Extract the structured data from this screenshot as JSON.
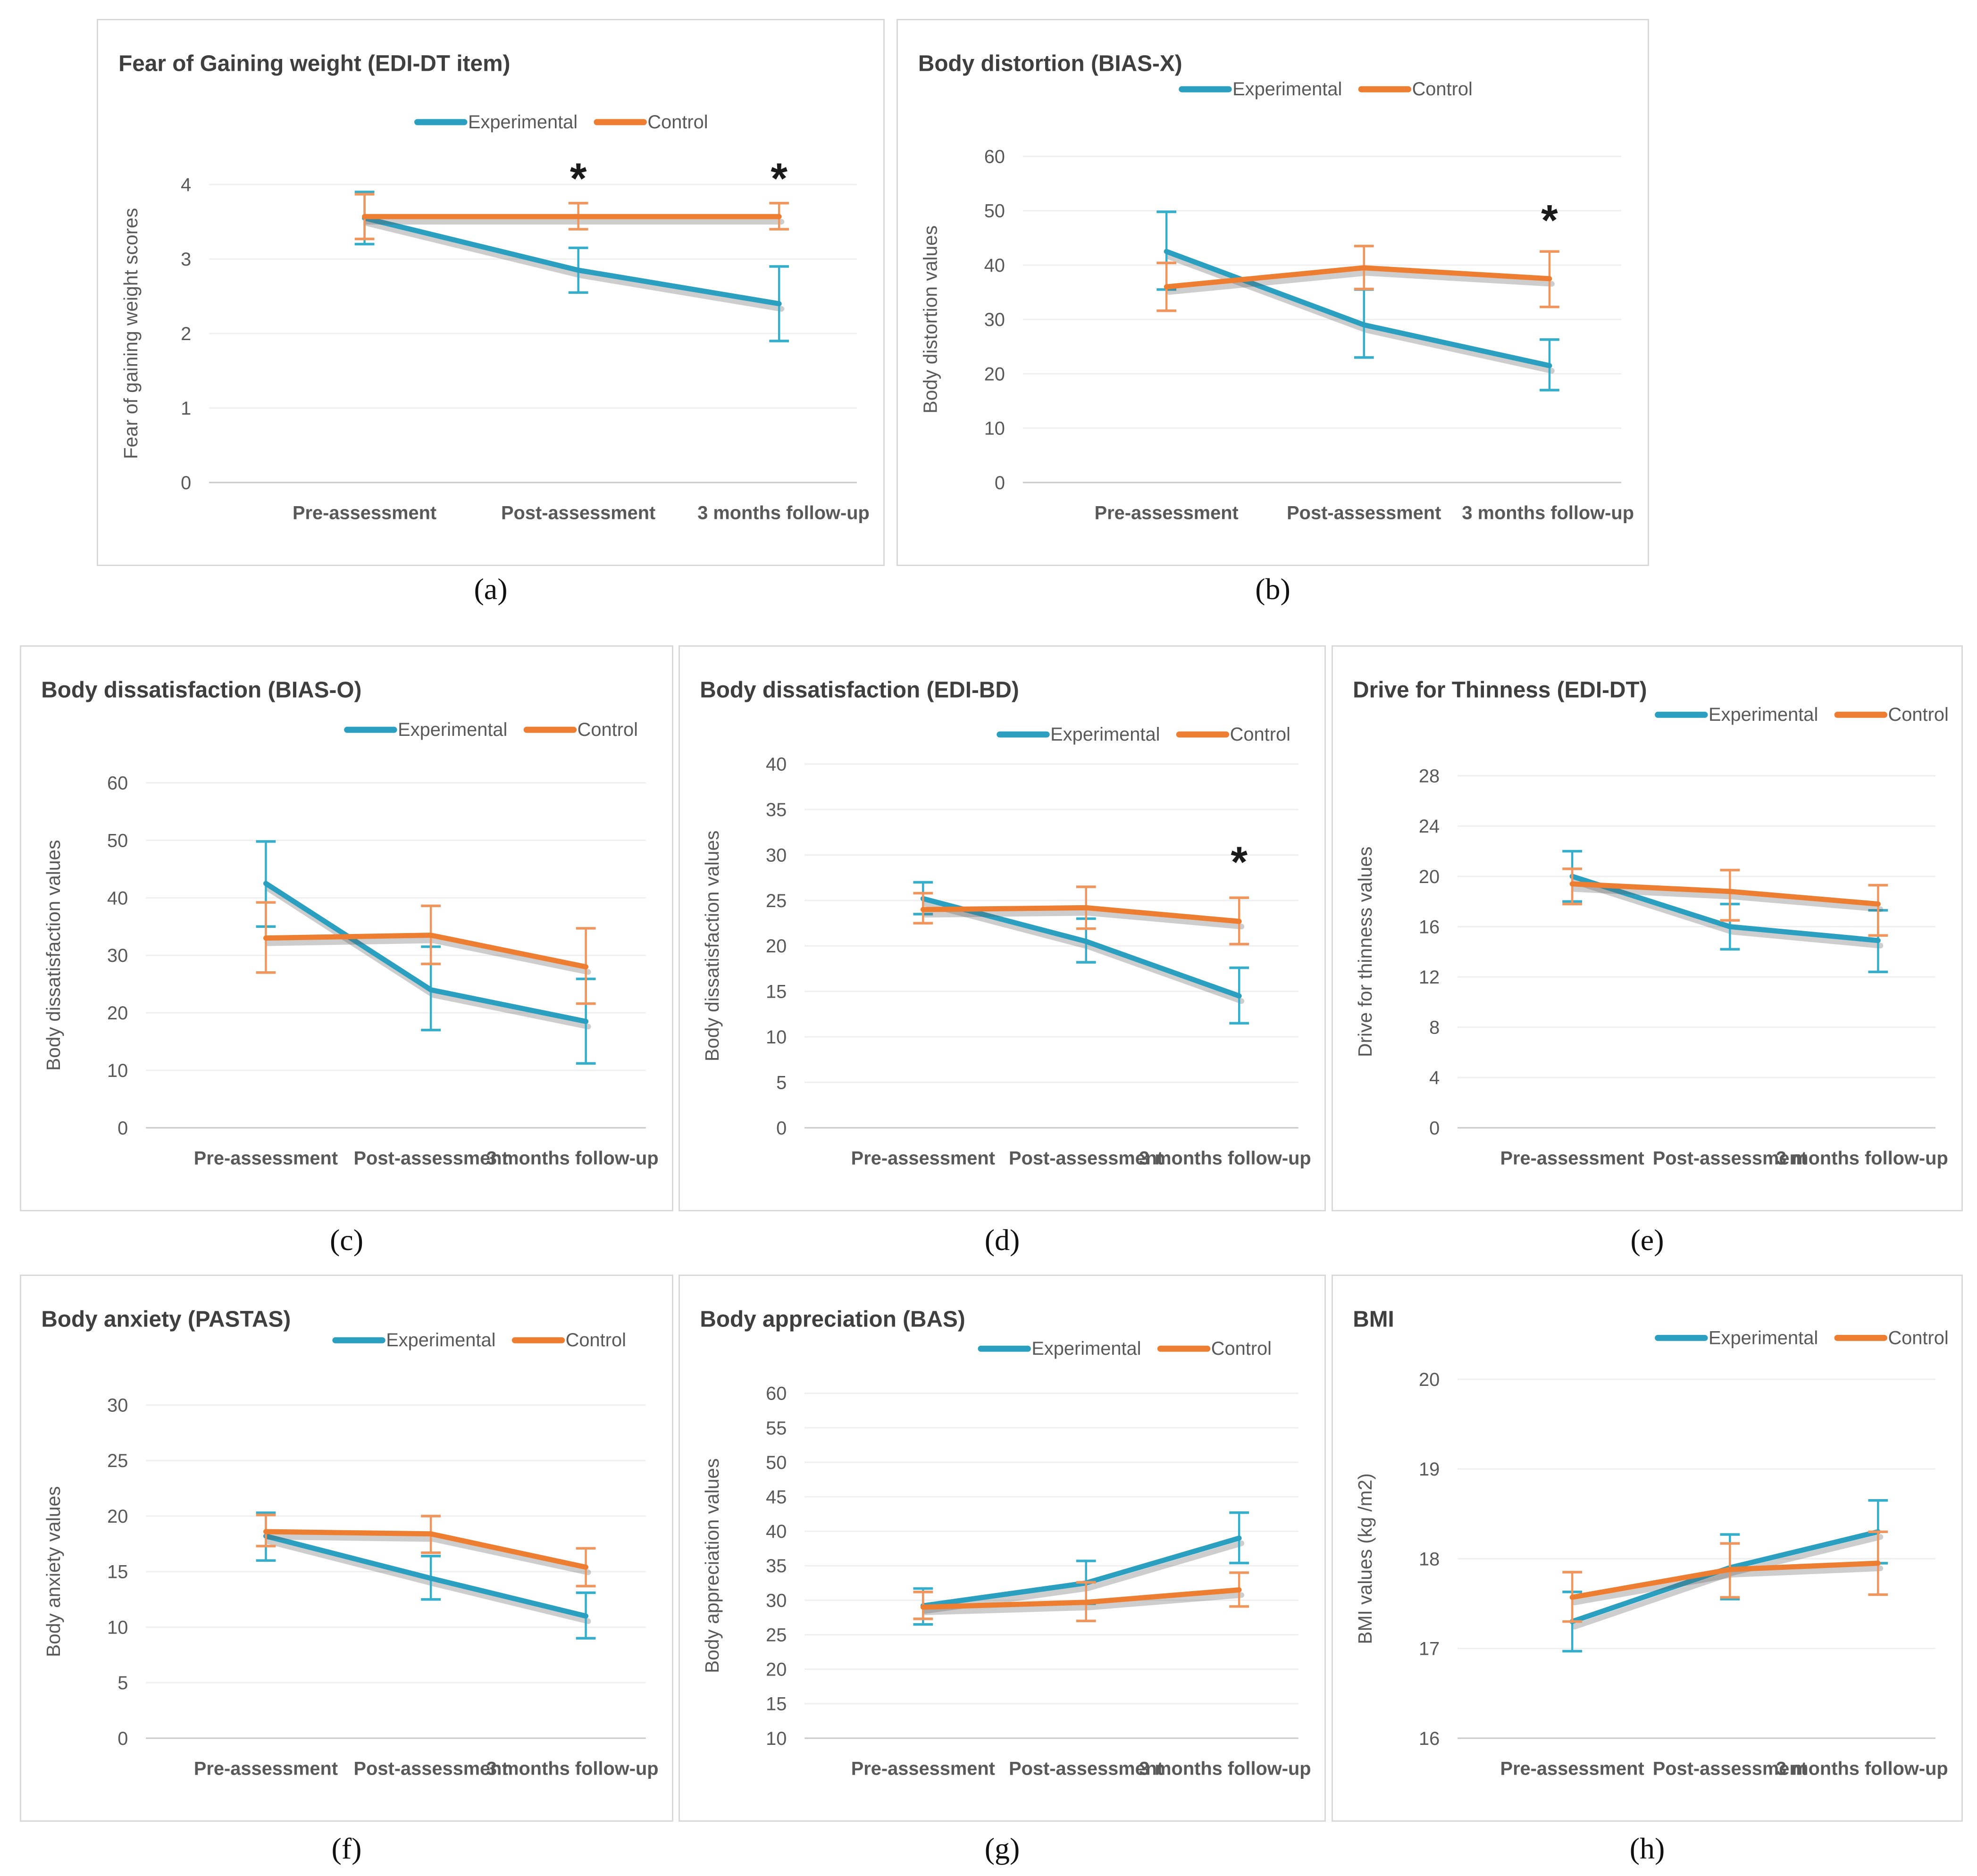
{
  "figure": {
    "description": "Eight line charts comparing Experimental and Control groups over three assessment time points, with error bars",
    "colors": {
      "experimental": "#2B9FC0",
      "experimental_error": "#35AECB",
      "control": "#ED7D31",
      "control_error": "#F0955C",
      "title_text": "#3f3f3f",
      "axis_text": "#595959",
      "gridline": "#efefef",
      "baseline": "#c9c9c9",
      "panel_border": "#d9d9d9"
    },
    "legend": {
      "items": [
        "Experimental",
        "Control"
      ]
    },
    "categories": [
      "Pre-assessment",
      "Post-assessment",
      "3 months follow-up"
    ]
  },
  "chart_data": [
    {
      "id": "a",
      "panel_label": "(a)",
      "type": "line",
      "title": "Fear of Gaining weight (EDI-DT item)",
      "ylabel": "Fear of gaining weight  scores",
      "ylim": [
        0,
        4
      ],
      "yticks": [
        0,
        1,
        2,
        3,
        4
      ],
      "categories": [
        "Pre-assessment",
        "Post-assessment",
        "3 months follow-up"
      ],
      "series": [
        {
          "name": "Experimental",
          "values": [
            3.55,
            2.85,
            2.4
          ],
          "err_low": [
            3.2,
            2.55,
            1.9
          ],
          "err_high": [
            3.9,
            3.15,
            2.9
          ]
        },
        {
          "name": "Control",
          "values": [
            3.57,
            3.57,
            3.57
          ],
          "err_low": [
            3.27,
            3.4,
            3.4
          ],
          "err_high": [
            3.87,
            3.75,
            3.75
          ]
        }
      ],
      "sig_markers": [
        {
          "category_index": 1,
          "y": 3.88,
          "symbol": "*"
        },
        {
          "category_index": 2,
          "y": 3.88,
          "symbol": "*"
        }
      ]
    },
    {
      "id": "b",
      "panel_label": "(b)",
      "type": "line",
      "title": "Body distortion (BIAS-X)",
      "ylabel": "Body distortion values",
      "ylim": [
        0,
        60
      ],
      "yticks": [
        0,
        10,
        20,
        30,
        40,
        50,
        60
      ],
      "categories": [
        "Pre-assessment",
        "Post-assessment",
        "3 months follow-up"
      ],
      "series": [
        {
          "name": "Experimental",
          "values": [
            42.5,
            29,
            21.5
          ],
          "err_low": [
            35.5,
            23,
            17
          ],
          "err_high": [
            49.8,
            35.5,
            26.3
          ]
        },
        {
          "name": "Control",
          "values": [
            36,
            39.5,
            37.5
          ],
          "err_low": [
            31.6,
            35.6,
            32.3
          ],
          "err_high": [
            40.4,
            43.5,
            42.5
          ]
        }
      ],
      "sig_markers": [
        {
          "category_index": 2,
          "y": 45.5,
          "symbol": "*"
        }
      ]
    },
    {
      "id": "c",
      "panel_label": "(c)",
      "type": "line",
      "title": "Body dissatisfaction (BIAS-O)",
      "ylabel": "Body dissatisfaction values",
      "ylim": [
        0,
        60
      ],
      "yticks": [
        0,
        10,
        20,
        30,
        40,
        50,
        60
      ],
      "categories": [
        "Pre-assessment",
        "Post-assessment",
        "3 months follow-up"
      ],
      "series": [
        {
          "name": "Experimental",
          "values": [
            42.5,
            24,
            18.5
          ],
          "err_low": [
            35,
            17,
            11.2
          ],
          "err_high": [
            49.8,
            31.5,
            25.9
          ]
        },
        {
          "name": "Control",
          "values": [
            33,
            33.5,
            28
          ],
          "err_low": [
            27,
            28.5,
            21.6
          ],
          "err_high": [
            39.2,
            38.6,
            34.7
          ]
        }
      ],
      "sig_markers": []
    },
    {
      "id": "d",
      "panel_label": "(d)",
      "type": "line",
      "title": "Body dissatisfaction (EDI-BD)",
      "ylabel": "Body dissatisfaction values",
      "ylim": [
        0,
        40
      ],
      "yticks": [
        0,
        5,
        10,
        15,
        20,
        25,
        30,
        35,
        40
      ],
      "categories": [
        "Pre-assessment",
        "Post-assessment",
        "3 months follow-up"
      ],
      "series": [
        {
          "name": "Experimental",
          "values": [
            25.2,
            20.5,
            14.5
          ],
          "err_low": [
            23.5,
            18.2,
            11.5
          ],
          "err_high": [
            27,
            23,
            17.6
          ]
        },
        {
          "name": "Control",
          "values": [
            24,
            24.2,
            22.7
          ],
          "err_low": [
            22.5,
            21.9,
            20.2
          ],
          "err_high": [
            25.8,
            26.5,
            25.3
          ]
        }
      ],
      "sig_markers": [
        {
          "category_index": 2,
          "y": 27.6,
          "symbol": "*"
        }
      ]
    },
    {
      "id": "e",
      "panel_label": "(e)",
      "type": "line",
      "title": "Drive for Thinness (EDI-DT)",
      "ylabel": "Drive for thinness values",
      "ylim": [
        0,
        28
      ],
      "yticks": [
        0,
        4,
        8,
        12,
        16,
        20,
        24,
        28
      ],
      "categories": [
        "Pre-assessment",
        "Post-assessment",
        "3 months follow-up"
      ],
      "series": [
        {
          "name": "Experimental",
          "values": [
            20,
            16,
            14.9
          ],
          "err_low": [
            18,
            14.2,
            12.4
          ],
          "err_high": [
            22,
            17.8,
            17.3
          ]
        },
        {
          "name": "Control",
          "values": [
            19.4,
            18.8,
            17.8
          ],
          "err_low": [
            17.8,
            16.5,
            15.3
          ],
          "err_high": [
            20.6,
            20.5,
            19.3
          ]
        }
      ],
      "sig_markers": []
    },
    {
      "id": "f",
      "panel_label": "(f)",
      "type": "line",
      "title": "Body anxiety (PASTAS)",
      "ylabel": "Body anxiety values",
      "ylim": [
        0,
        30
      ],
      "yticks": [
        0,
        5,
        10,
        15,
        20,
        25,
        30
      ],
      "categories": [
        "Pre-assessment",
        "Post-assessment",
        "3 months follow-up"
      ],
      "series": [
        {
          "name": "Experimental",
          "values": [
            18.2,
            14.4,
            11
          ],
          "err_low": [
            16,
            12.5,
            9
          ],
          "err_high": [
            20.3,
            16.4,
            13.1
          ]
        },
        {
          "name": "Control",
          "values": [
            18.6,
            18.4,
            15.4
          ],
          "err_low": [
            17.3,
            16.7,
            13.7
          ],
          "err_high": [
            20.1,
            20,
            17.1
          ]
        }
      ],
      "sig_markers": []
    },
    {
      "id": "g",
      "panel_label": "(g)",
      "type": "line",
      "title": "Body appreciation (BAS)",
      "ylabel": "Body appreciation values",
      "ylim": [
        10,
        60
      ],
      "yticks": [
        10,
        15,
        20,
        25,
        30,
        35,
        40,
        45,
        50,
        55,
        60
      ],
      "categories": [
        "Pre-assessment",
        "Post-assessment",
        "3 months follow-up"
      ],
      "series": [
        {
          "name": "Experimental",
          "values": [
            29.2,
            32.5,
            39
          ],
          "err_low": [
            26.5,
            29.5,
            35.4
          ],
          "err_high": [
            31.7,
            35.7,
            42.7
          ]
        },
        {
          "name": "Control",
          "values": [
            29,
            29.7,
            31.5
          ],
          "err_low": [
            27.3,
            27,
            29.1
          ],
          "err_high": [
            31.2,
            32.6,
            34
          ]
        }
      ],
      "sig_markers": []
    },
    {
      "id": "h",
      "panel_label": "(h)",
      "type": "line",
      "title": "BMI",
      "ylabel": "BMI values (kg /m2)",
      "ylim": [
        16,
        20
      ],
      "yticks": [
        16,
        17,
        18,
        19,
        20
      ],
      "categories": [
        "Pre-assessment",
        "Post-assessment",
        "3 months follow-up"
      ],
      "series": [
        {
          "name": "Experimental",
          "values": [
            17.3,
            17.9,
            18.3
          ],
          "err_low": [
            16.97,
            17.55,
            17.95
          ],
          "err_high": [
            17.63,
            18.27,
            18.65
          ]
        },
        {
          "name": "Control",
          "values": [
            17.57,
            17.88,
            17.95
          ],
          "err_low": [
            17.3,
            17.57,
            17.6
          ],
          "err_high": [
            17.85,
            18.17,
            18.3
          ]
        }
      ],
      "sig_markers": []
    }
  ]
}
